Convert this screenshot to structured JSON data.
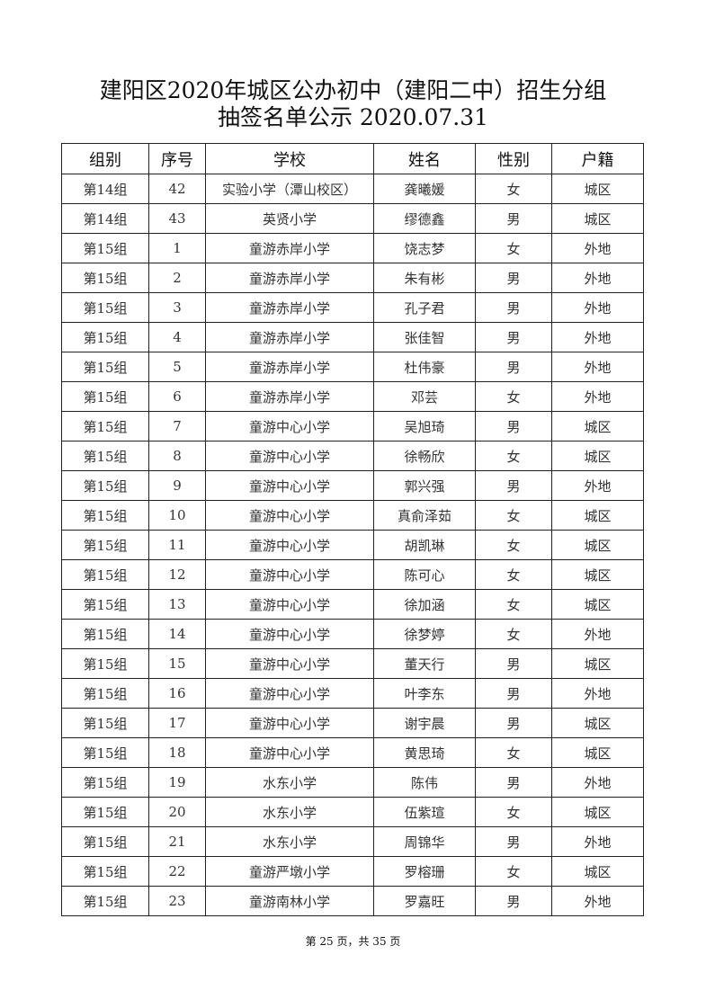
{
  "title_line1": "建阳区2020年城区公办初中（建阳二中）招生分组",
  "title_line2": "抽签名单公示 2020.07.31",
  "table": {
    "headers": [
      "组别",
      "序号",
      "学校",
      "姓名",
      "性别",
      "户籍"
    ],
    "rows": [
      [
        "第14组",
        "42",
        "实验小学（潭山校区）",
        "龚曦媛",
        "女",
        "城区"
      ],
      [
        "第14组",
        "43",
        "英贤小学",
        "缪德鑫",
        "男",
        "城区"
      ],
      [
        "第15组",
        "1",
        "童游赤岸小学",
        "饶志梦",
        "女",
        "外地"
      ],
      [
        "第15组",
        "2",
        "童游赤岸小学",
        "朱有彬",
        "男",
        "外地"
      ],
      [
        "第15组",
        "3",
        "童游赤岸小学",
        "孔子君",
        "男",
        "外地"
      ],
      [
        "第15组",
        "4",
        "童游赤岸小学",
        "张佳智",
        "男",
        "外地"
      ],
      [
        "第15组",
        "5",
        "童游赤岸小学",
        "杜伟豪",
        "男",
        "外地"
      ],
      [
        "第15组",
        "6",
        "童游赤岸小学",
        "邓芸",
        "女",
        "外地"
      ],
      [
        "第15组",
        "7",
        "童游中心小学",
        "吴旭琦",
        "男",
        "城区"
      ],
      [
        "第15组",
        "8",
        "童游中心小学",
        "徐畅欣",
        "女",
        "城区"
      ],
      [
        "第15组",
        "9",
        "童游中心小学",
        "郭兴强",
        "男",
        "外地"
      ],
      [
        "第15组",
        "10",
        "童游中心小学",
        "真俞泽茹",
        "女",
        "城区"
      ],
      [
        "第15组",
        "11",
        "童游中心小学",
        "胡凯琳",
        "女",
        "城区"
      ],
      [
        "第15组",
        "12",
        "童游中心小学",
        "陈可心",
        "女",
        "城区"
      ],
      [
        "第15组",
        "13",
        "童游中心小学",
        "徐加涵",
        "女",
        "城区"
      ],
      [
        "第15组",
        "14",
        "童游中心小学",
        "徐梦婷",
        "女",
        "外地"
      ],
      [
        "第15组",
        "15",
        "童游中心小学",
        "董天行",
        "男",
        "城区"
      ],
      [
        "第15组",
        "16",
        "童游中心小学",
        "叶李东",
        "男",
        "外地"
      ],
      [
        "第15组",
        "17",
        "童游中心小学",
        "谢宇晨",
        "男",
        "城区"
      ],
      [
        "第15组",
        "18",
        "童游中心小学",
        "黄思琦",
        "女",
        "城区"
      ],
      [
        "第15组",
        "19",
        "水东小学",
        "陈伟",
        "男",
        "外地"
      ],
      [
        "第15组",
        "20",
        "水东小学",
        "伍紫瑄",
        "女",
        "城区"
      ],
      [
        "第15组",
        "21",
        "水东小学",
        "周锦华",
        "男",
        "外地"
      ],
      [
        "第15组",
        "22",
        "童游严墩小学",
        "罗榕珊",
        "女",
        "城区"
      ],
      [
        "第15组",
        "23",
        "童游南林小学",
        "罗嘉旺",
        "男",
        "外地"
      ]
    ]
  },
  "footer": "第 25 页，共 35 页"
}
